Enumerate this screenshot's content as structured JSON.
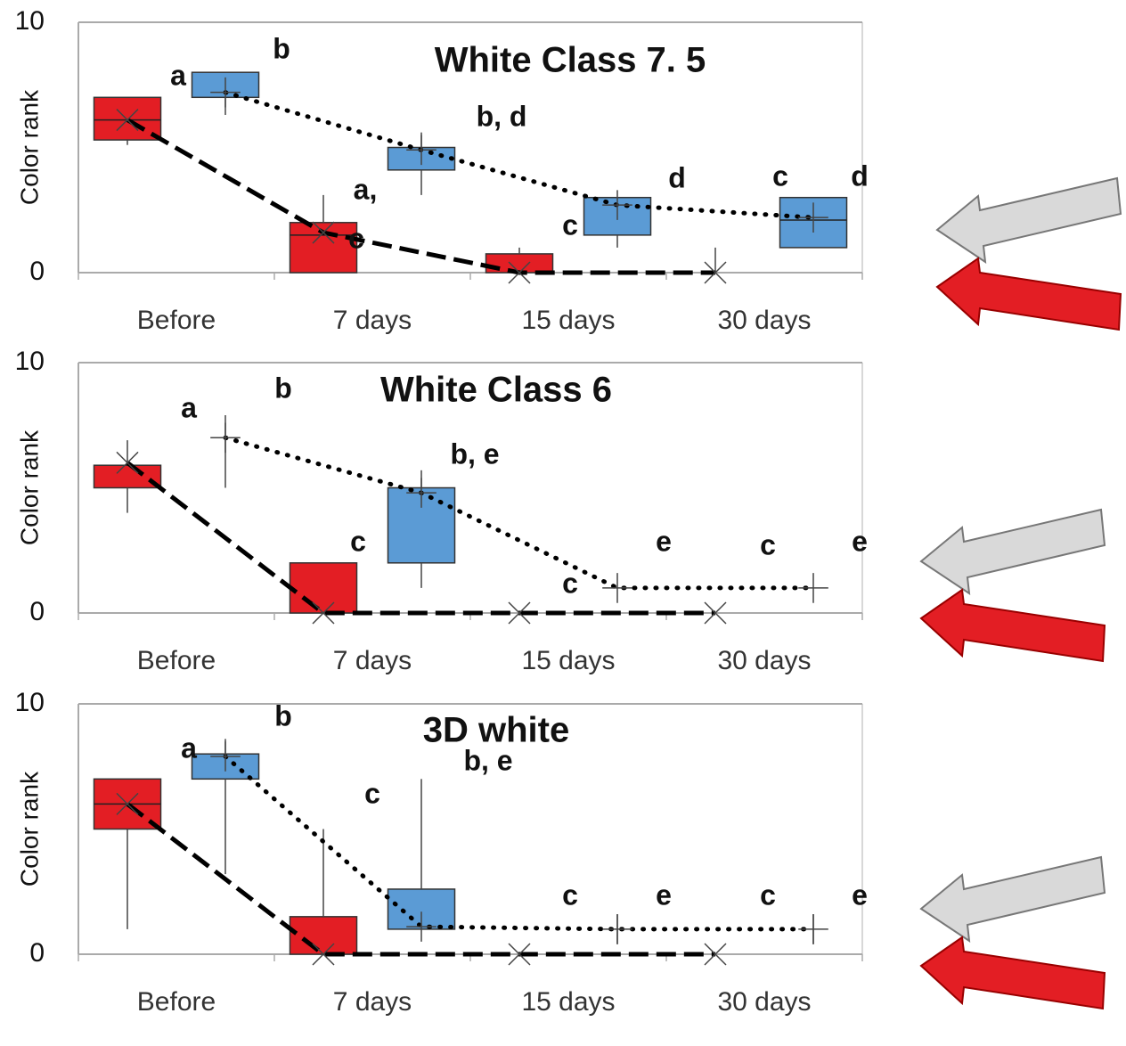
{
  "chart_data": [
    {
      "type": "box",
      "title": "White Class 7. 5",
      "y_label": "Color rank",
      "categories": [
        "Before",
        "7 days",
        "15 days",
        "30 days"
      ],
      "ylim": [
        0,
        10
      ],
      "yticks": [
        0,
        10
      ],
      "grid": true,
      "series": [
        {
          "color": "#e31e24",
          "line": "dashed",
          "marker": "x",
          "q1": [
            5.3,
            0,
            0,
            null
          ],
          "median": [
            6.1,
            1.5,
            null,
            null
          ],
          "q3": [
            7.0,
            2.0,
            0.75,
            null
          ],
          "low": [
            5.1,
            null,
            null,
            null
          ],
          "high": [
            null,
            3.1,
            1.0,
            1.0
          ],
          "mean": [
            6.1,
            1.6,
            0,
            0
          ]
        },
        {
          "color": "#5b9bd5",
          "line": "dotted",
          "marker": "+",
          "q1": [
            7.0,
            4.1,
            1.5,
            1.0
          ],
          "median": [
            null,
            null,
            null,
            2.1
          ],
          "q3": [
            8.0,
            5.0,
            3.0,
            3.0
          ],
          "low": [
            6.3,
            3.1,
            1.0,
            null
          ],
          "high": [
            null,
            5.6,
            null,
            null
          ],
          "mean": [
            7.2,
            4.9,
            2.7,
            2.2
          ]
        }
      ],
      "annotations": [
        "a",
        "b",
        "b, d",
        "a,",
        "c",
        "c",
        "d",
        "c",
        "d"
      ]
    },
    {
      "type": "box",
      "title": "White Class 6",
      "y_label": "Color rank",
      "categories": [
        "Before",
        "7 days",
        "15 days",
        "30 days"
      ],
      "ylim": [
        0,
        10
      ],
      "yticks": [
        0,
        10
      ],
      "grid": true,
      "series": [
        {
          "color": "#e31e24",
          "line": "dashed",
          "marker": "x",
          "q1": [
            5.0,
            0,
            null,
            null
          ],
          "median": [
            null,
            null,
            null,
            null
          ],
          "q3": [
            5.9,
            2.0,
            null,
            null
          ],
          "low": [
            4.0,
            null,
            null,
            null
          ],
          "high": [
            6.9,
            null,
            null,
            null
          ],
          "mean": [
            6.0,
            0,
            0,
            0
          ]
        },
        {
          "color": "#5b9bd5",
          "line": "dotted",
          "marker": "+",
          "q1": [
            null,
            2.0,
            null,
            null
          ],
          "median": [
            null,
            null,
            null,
            null
          ],
          "q3": [
            null,
            5.0,
            null,
            null
          ],
          "low": [
            5.0,
            1.0,
            null,
            null
          ],
          "high": [
            7.9,
            5.7,
            null,
            null
          ],
          "mean": [
            7.0,
            4.8,
            1.0,
            1.0
          ]
        }
      ],
      "annotations": [
        "a",
        "b",
        "b, e",
        "c",
        "c",
        "e",
        "c",
        "e"
      ]
    },
    {
      "type": "box",
      "title": "3D white",
      "y_label": "Color rank",
      "categories": [
        "Before",
        "7 days",
        "15 days",
        "30 days"
      ],
      "ylim": [
        0,
        10
      ],
      "yticks": [
        0,
        10
      ],
      "grid": true,
      "series": [
        {
          "color": "#e31e24",
          "line": "dashed",
          "marker": "x",
          "q1": [
            5.0,
            0,
            null,
            null
          ],
          "median": [
            6.0,
            null,
            null,
            null
          ],
          "q3": [
            7.0,
            1.5,
            null,
            null
          ],
          "low": [
            1.0,
            null,
            null,
            null
          ],
          "high": [
            null,
            5.0,
            null,
            null
          ],
          "mean": [
            6.0,
            0,
            0,
            0
          ]
        },
        {
          "color": "#5b9bd5",
          "line": "dotted",
          "marker": "+",
          "q1": [
            7.0,
            1.0,
            null,
            null
          ],
          "median": [
            null,
            null,
            null,
            null
          ],
          "q3": [
            8.0,
            2.6,
            null,
            null
          ],
          "low": [
            3.2,
            null,
            0.4,
            0.4
          ],
          "high": [
            8.6,
            7.0,
            1.6,
            1.6
          ],
          "mean": [
            7.9,
            1.1,
            1.0,
            1.0
          ]
        }
      ],
      "annotations": [
        "a",
        "b",
        "b, e",
        "c",
        "c",
        "e",
        "c",
        "e"
      ]
    }
  ]
}
